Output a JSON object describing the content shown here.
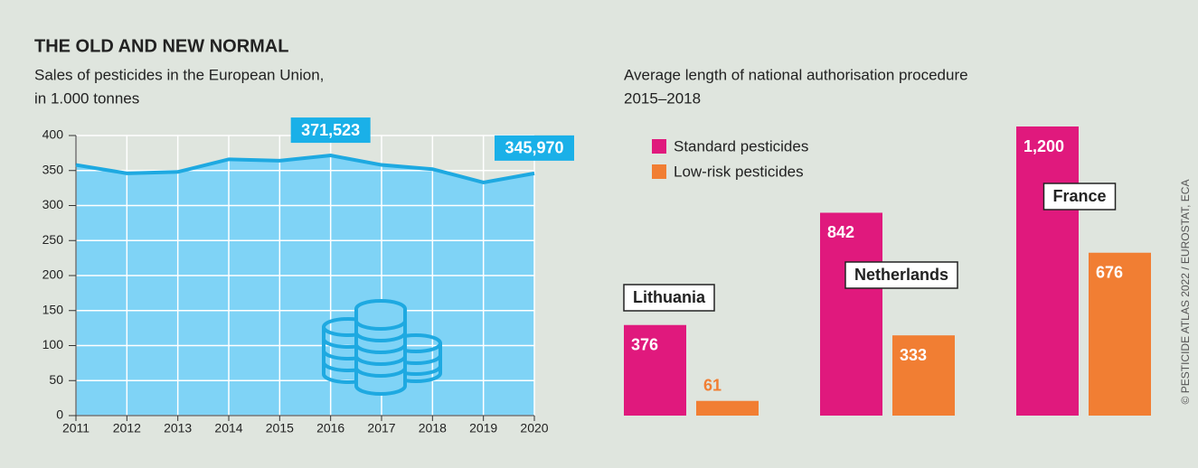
{
  "chart_data": [
    {
      "type": "area",
      "title": "THE OLD AND NEW NORMAL",
      "subtitle": "Sales of pesticides in the European Union,",
      "subtitle2": "in 1.000 tonnes",
      "x": [
        2011,
        2012,
        2013,
        2014,
        2015,
        2016,
        2017,
        2018,
        2019,
        2020
      ],
      "values": [
        358,
        346,
        348,
        366,
        364,
        371.523,
        358,
        352,
        333,
        345.97
      ],
      "value_labels": [
        null,
        null,
        null,
        null,
        null,
        "371,523",
        null,
        null,
        null,
        "345,970"
      ],
      "color": "#1ea9e1",
      "fill": "#7fd3f6",
      "label_color": "#1ab0e8",
      "xlim": [
        2011,
        2020
      ],
      "xticks": [
        2011,
        2012,
        2013,
        2014,
        2015,
        2016,
        2017,
        2018,
        2019,
        2020
      ],
      "ylim": [
        0,
        400
      ],
      "yticks": [
        0,
        50,
        100,
        150,
        200,
        250,
        300,
        350,
        400
      ],
      "grid": true
    },
    {
      "type": "grouped_bar",
      "subtitle": "Average length of national authorisation procedure",
      "subtitle2": "2015–2018",
      "categories": [
        "Lithuania",
        "Netherlands",
        "France"
      ],
      "series": [
        {
          "name": "Standard pesticides",
          "color": "#e0197d",
          "values": [
            376,
            842,
            1200
          ],
          "value_labels": [
            "376",
            "842",
            "1,200"
          ]
        },
        {
          "name": "Low-risk pesticides",
          "color": "#f17e33",
          "values": [
            61,
            333,
            676
          ]
        }
      ],
      "legend": "top-left"
    }
  ],
  "source": "© PESTICIDE ATLAS 2022 / EUROSTAT, ECA"
}
